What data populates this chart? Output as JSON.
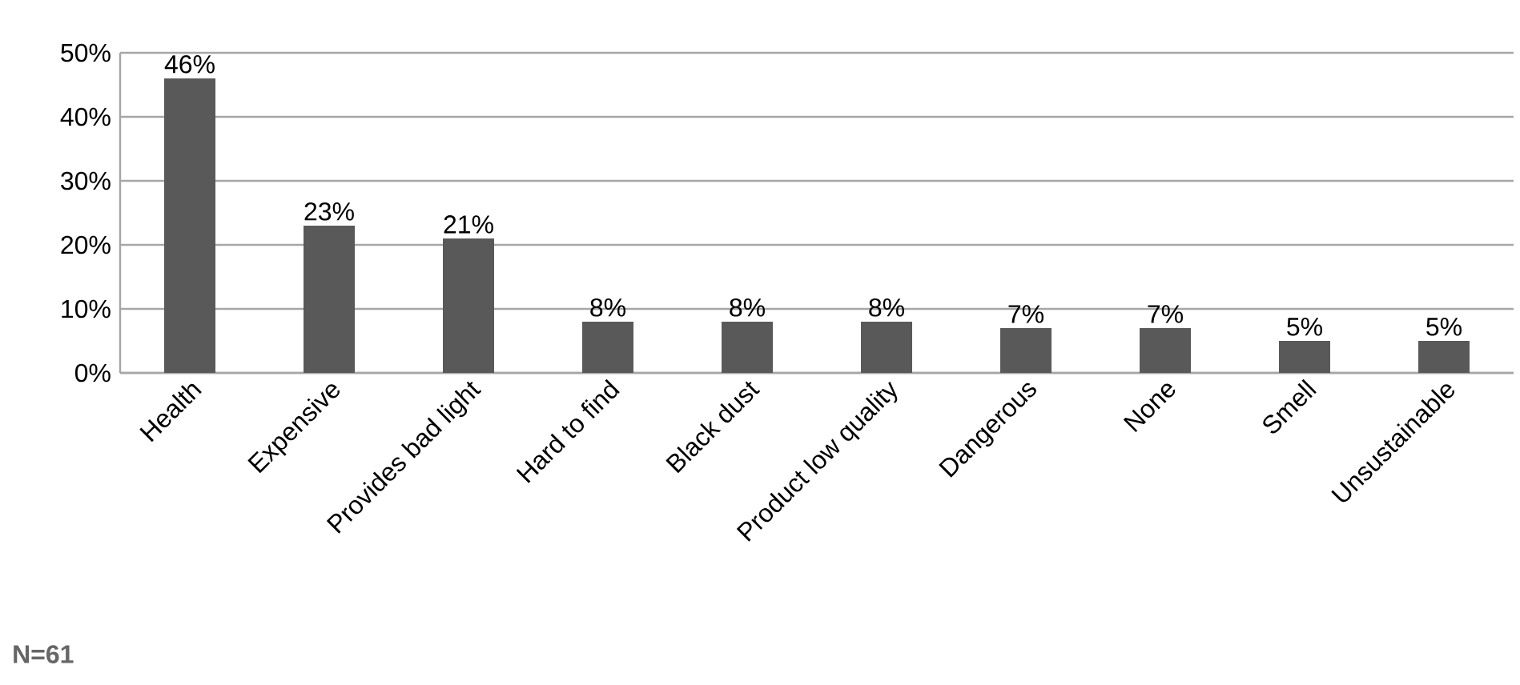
{
  "chart_data": {
    "type": "bar",
    "categories": [
      "Health",
      "Expensive",
      "Provides bad light",
      "Hard to find",
      "Black dust",
      "Product low quality",
      "Dangerous",
      "None",
      "Smell",
      "Unsustainable"
    ],
    "values": [
      46,
      23,
      21,
      8,
      8,
      8,
      7,
      7,
      5,
      5
    ],
    "value_labels": [
      "46%",
      "23%",
      "21%",
      "8%",
      "8%",
      "8%",
      "7%",
      "7%",
      "5%",
      "5%"
    ],
    "color": "#595959",
    "ylim": [
      0,
      50
    ],
    "yticks": [
      {
        "value": 0,
        "label": "0%"
      },
      {
        "value": 10,
        "label": "10%"
      },
      {
        "value": 20,
        "label": "20%"
      },
      {
        "value": 30,
        "label": "30%"
      },
      {
        "value": 40,
        "label": "40%"
      },
      {
        "value": 50,
        "label": "50%"
      }
    ],
    "grid": "y",
    "annotations": [
      "N=61"
    ]
  }
}
